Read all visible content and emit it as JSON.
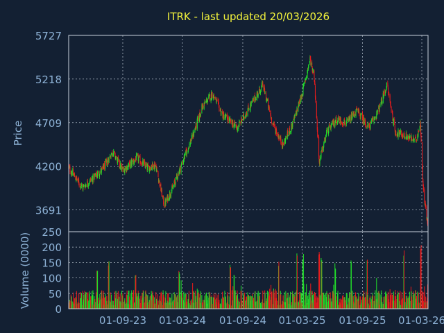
{
  "colors": {
    "background": "#132033",
    "title": "#f2f23c",
    "axis_text": "#8eb2d6",
    "frame": "#c8d2dc",
    "grid": "#a9b4c0",
    "up": "#22e02a",
    "down": "#ec1c1c"
  },
  "chart_data": [
    {
      "type": "candlestick",
      "title": "ITRK - last updated 20/03/2026",
      "ylabel": "Price",
      "yticks": [
        "5727",
        "5218",
        "4709",
        "4200",
        "3691"
      ],
      "ytick_values": [
        5727,
        5218,
        4709,
        4200,
        3691
      ],
      "ylim": [
        3436,
        5727
      ],
      "grid": true,
      "xlim": [
        "2023-03-20",
        "2026-03-20"
      ],
      "series_summary_points": [
        {
          "date": "2023-03-20",
          "close": 4180
        },
        {
          "date": "2023-05-01",
          "close": 3950
        },
        {
          "date": "2023-07-01",
          "close": 4160
        },
        {
          "date": "2023-08-01",
          "close": 4370
        },
        {
          "date": "2023-09-01",
          "close": 4150
        },
        {
          "date": "2023-10-15",
          "close": 4300
        },
        {
          "date": "2023-11-15",
          "close": 4180
        },
        {
          "date": "2023-12-10",
          "close": 4220
        },
        {
          "date": "2024-01-05",
          "close": 3750
        },
        {
          "date": "2024-02-01",
          "close": 3950
        },
        {
          "date": "2024-03-01",
          "close": 4250
        },
        {
          "date": "2024-04-01",
          "close": 4550
        },
        {
          "date": "2024-05-01",
          "close": 4900
        },
        {
          "date": "2024-06-01",
          "close": 5050
        },
        {
          "date": "2024-07-01",
          "close": 4800
        },
        {
          "date": "2024-08-15",
          "close": 4650
        },
        {
          "date": "2024-10-01",
          "close": 4950
        },
        {
          "date": "2024-11-01",
          "close": 5150
        },
        {
          "date": "2024-12-01",
          "close": 4700
        },
        {
          "date": "2025-01-01",
          "close": 4450
        },
        {
          "date": "2025-02-01",
          "close": 4700
        },
        {
          "date": "2025-03-01",
          "close": 5050
        },
        {
          "date": "2025-03-25",
          "close": 5450
        },
        {
          "date": "2025-04-07",
          "close": 5250
        },
        {
          "date": "2025-04-22",
          "close": 4250
        },
        {
          "date": "2025-05-15",
          "close": 4600
        },
        {
          "date": "2025-06-15",
          "close": 4750
        },
        {
          "date": "2025-07-15",
          "close": 4700
        },
        {
          "date": "2025-08-15",
          "close": 4850
        },
        {
          "date": "2025-09-20",
          "close": 4650
        },
        {
          "date": "2025-10-20",
          "close": 4850
        },
        {
          "date": "2025-11-15",
          "close": 5150
        },
        {
          "date": "2025-12-10",
          "close": 4600
        },
        {
          "date": "2026-01-10",
          "close": 4550
        },
        {
          "date": "2026-02-10",
          "close": 4500
        },
        {
          "date": "2026-02-25",
          "close": 4700
        },
        {
          "date": "2026-03-05",
          "close": 3950
        },
        {
          "date": "2026-03-20",
          "close": 3470
        }
      ]
    },
    {
      "type": "bar",
      "ylabel": "Volume (0000)",
      "yticks": [
        "250",
        "200",
        "150",
        "100",
        "50",
        "0"
      ],
      "ytick_values": [
        250,
        200,
        150,
        100,
        50,
        0
      ],
      "ylim": [
        0,
        250
      ],
      "grid": true,
      "xticks": [
        "01-09-23",
        "01-03-24",
        "01-09-24",
        "01-03-25",
        "01-09-25",
        "01-03-26"
      ],
      "xtick_dates": [
        "2023-09-01",
        "2024-03-01",
        "2024-09-01",
        "2025-03-01",
        "2025-09-01",
        "2026-03-01"
      ],
      "typical_volume_range": [
        10,
        60
      ],
      "spikes": [
        {
          "date": "2023-06-15",
          "value": 125
        },
        {
          "date": "2023-07-20",
          "value": 155
        },
        {
          "date": "2023-10-10",
          "value": 110
        },
        {
          "date": "2024-02-20",
          "value": 130
        },
        {
          "date": "2024-07-25",
          "value": 150
        },
        {
          "date": "2024-08-05",
          "value": 120
        },
        {
          "date": "2024-12-20",
          "value": 160
        },
        {
          "date": "2025-02-14",
          "value": 190
        },
        {
          "date": "2025-03-04",
          "value": 180
        },
        {
          "date": "2025-04-22",
          "value": 195
        },
        {
          "date": "2025-04-29",
          "value": 175
        },
        {
          "date": "2025-06-10",
          "value": 150
        },
        {
          "date": "2025-07-28",
          "value": 175
        },
        {
          "date": "2025-09-15",
          "value": 160
        },
        {
          "date": "2026-01-05",
          "value": 195
        },
        {
          "date": "2026-02-26",
          "value": 225
        }
      ]
    }
  ]
}
